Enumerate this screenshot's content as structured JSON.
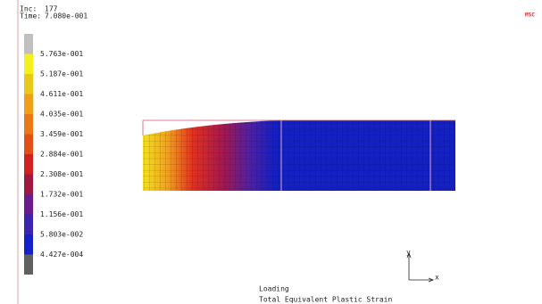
{
  "header": {
    "inc_label": "Inc:",
    "inc": "177",
    "time_label": "Time:",
    "time": "7.080e-001"
  },
  "logo": "MSC",
  "legend": {
    "labels": [
      "5.763e-001",
      "5.187e-001",
      "4.611e-001",
      "4.035e-001",
      "3.459e-001",
      "2.884e-001",
      "2.308e-001",
      "1.732e-001",
      "1.156e-001",
      "5.803e-002",
      "4.427e-004"
    ]
  },
  "triad": {
    "y": "y",
    "x": "x"
  },
  "footer": {
    "job": "Loading",
    "quantity": "Total Equivalent Plastic Strain"
  }
}
